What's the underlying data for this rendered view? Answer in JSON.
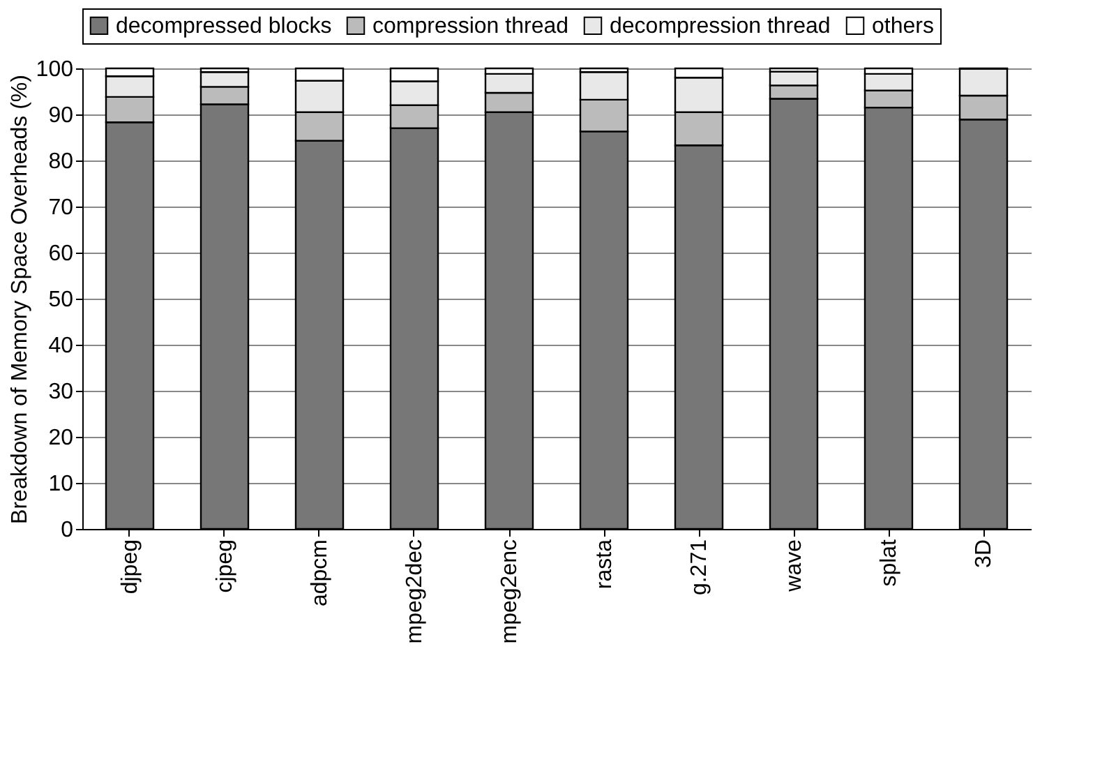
{
  "chart_data": {
    "type": "bar",
    "stacked": true,
    "ylabel": "Breakdown of Memory Space Overheads (%)",
    "categories": [
      "djpeg",
      "cjpeg",
      "adpcm",
      "mpeg2dec",
      "mpeg2enc",
      "rasta",
      "g.271",
      "wave",
      "splat",
      "3D"
    ],
    "series": [
      {
        "name": "decompressed blocks",
        "color": "#777777",
        "values": [
          88.3,
          92.2,
          84.3,
          87,
          90.5,
          86.3,
          83.3,
          93.4,
          91.5,
          88.9
        ]
      },
      {
        "name": "compression thread",
        "color": "#bbbbbb",
        "values": [
          5.5,
          3.8,
          6.2,
          5,
          4.2,
          6.9,
          7.2,
          2.9,
          3.7,
          5.2
        ]
      },
      {
        "name": "decompression thread",
        "color": "#e8e8e8",
        "values": [
          4.5,
          3.2,
          6.8,
          5.2,
          4.1,
          6,
          7.5,
          3,
          3.6,
          5.8
        ]
      },
      {
        "name": "others",
        "color": "#ffffff",
        "values": [
          1.7,
          0.8,
          2.7,
          2.8,
          1.2,
          0.8,
          2,
          0.7,
          1.2,
          0.1
        ]
      }
    ],
    "ylim": [
      0,
      100
    ],
    "yticks": [
      0,
      10,
      20,
      30,
      40,
      50,
      60,
      70,
      80,
      90,
      100
    ],
    "grid": "y",
    "legend": "top"
  }
}
